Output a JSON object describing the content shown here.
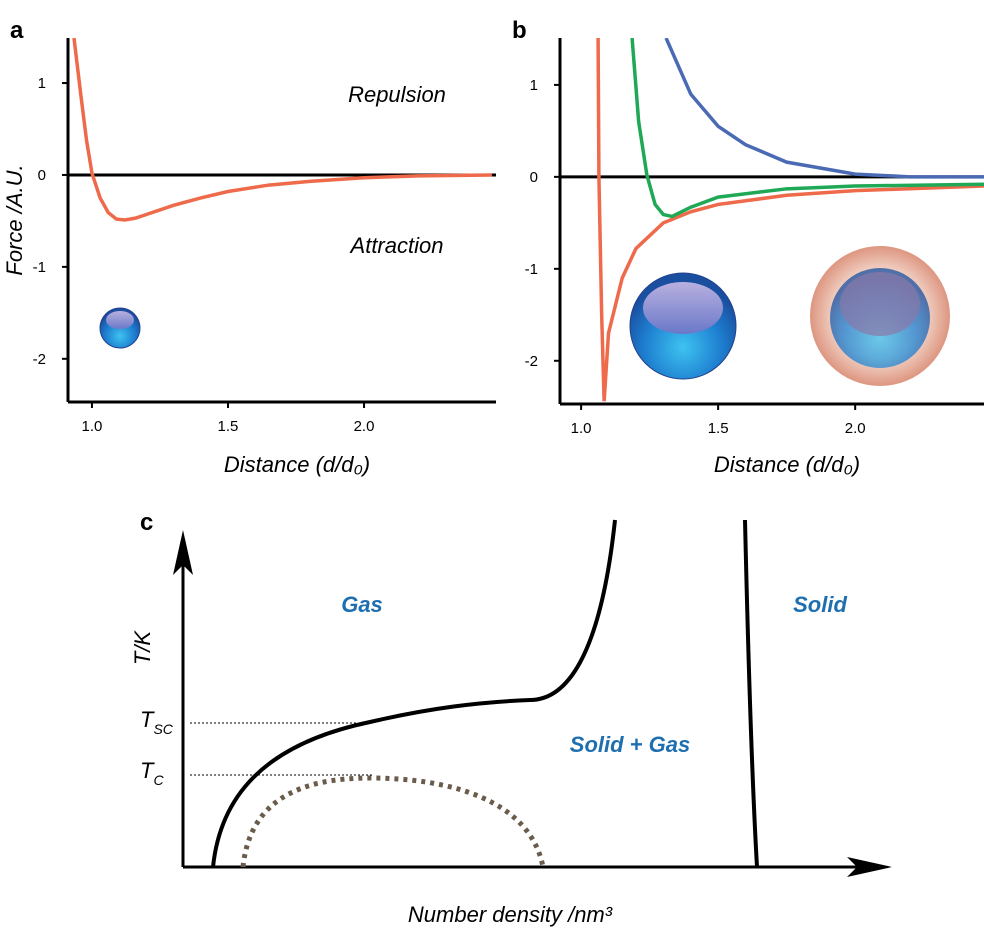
{
  "chart_data": [
    {
      "type": "line",
      "panel_label": "a",
      "y_label": "Force /A.U.",
      "x_label": "Distance (d/d₀)",
      "annotations": [
        "Repulsion",
        "Attraction"
      ],
      "xlim": [
        0.912,
        2.485
      ],
      "ylim": [
        -2.47,
        1.49
      ],
      "xticks": [
        {
          "value": 1,
          "label": "1.0"
        },
        {
          "value": 1.5,
          "label": "1.5"
        },
        {
          "value": 2,
          "label": "2.0"
        }
      ],
      "yticks": [
        1,
        0,
        -1,
        -2
      ],
      "zero_line": true,
      "series": [
        {
          "color": "#ee6a4a",
          "x": [
            0.934,
            0.96,
            0.98,
            1.0,
            1.03,
            1.06,
            1.09,
            1.12,
            1.16,
            1.2,
            1.3,
            1.4,
            1.5,
            1.65,
            1.8,
            2.0,
            2.2,
            2.47
          ],
          "values": [
            1.49,
            0.85,
            0.38,
            0.02,
            -0.25,
            -0.41,
            -0.48,
            -0.49,
            -0.47,
            -0.43,
            -0.33,
            -0.25,
            -0.18,
            -0.11,
            -0.07,
            -0.03,
            -0.01,
            0
          ]
        }
      ]
    },
    {
      "type": "line",
      "panel_label": "b",
      "x_label": "Distance (d/d₀)",
      "xlim": [
        0.923,
        2.47
      ],
      "ylim": [
        -2.47,
        1.51
      ],
      "xticks": [
        {
          "value": 1,
          "label": "1.0"
        },
        {
          "value": 1.5,
          "label": "1.5"
        },
        {
          "value": 2,
          "label": "2.0"
        }
      ],
      "yticks": [
        1,
        0,
        -1,
        -2
      ],
      "zero_line": true,
      "series": [
        {
          "color": "#ee6a4a",
          "x": [
            1.062,
            1.065,
            1.075,
            1.084,
            1.1,
            1.15,
            1.2,
            1.3,
            1.4,
            1.5,
            1.75,
            2.0,
            2.47
          ],
          "values": [
            1.51,
            0,
            -1.5,
            -2.44,
            -1.7,
            -1.1,
            -0.78,
            -0.5,
            -0.38,
            -0.3,
            -0.2,
            -0.15,
            -0.1
          ]
        },
        {
          "color": "#1fa855",
          "x": [
            1.186,
            1.21,
            1.24,
            1.27,
            1.3,
            1.332,
            1.4,
            1.5,
            1.75,
            2.0,
            2.47
          ],
          "values": [
            1.51,
            0.6,
            0.02,
            -0.3,
            -0.41,
            -0.43,
            -0.33,
            -0.22,
            -0.13,
            -0.1,
            -0.08
          ]
        },
        {
          "color": "#4a6ab4",
          "x": [
            1.31,
            1.4,
            1.5,
            1.6,
            1.75,
            2.0,
            2.2,
            2.47
          ],
          "values": [
            1.51,
            0.9,
            0.55,
            0.35,
            0.16,
            0.03,
            0,
            0
          ]
        }
      ]
    }
  ],
  "phase_diagram": {
    "panel_label": "c",
    "y_label": "T/K",
    "x_label": "Number density /nm³",
    "regions": [
      "Gas",
      "Solid",
      "Solid + Gas"
    ],
    "temperatures": [
      {
        "main": "T",
        "sub": "SC"
      },
      {
        "main": "T",
        "sub": "C"
      }
    ]
  }
}
